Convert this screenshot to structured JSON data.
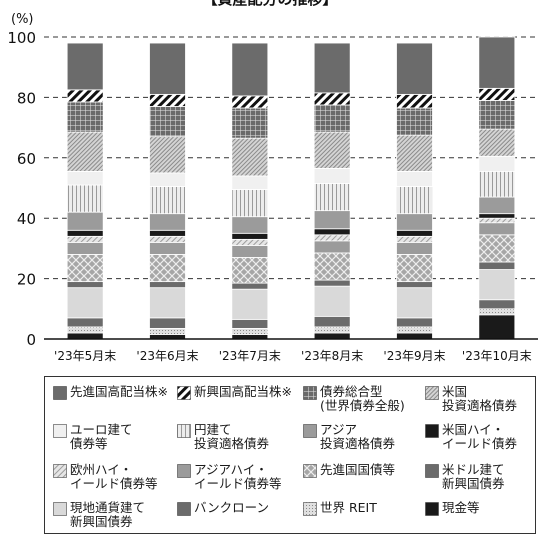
{
  "title": "【資産配分の推移】",
  "chart_data": {
    "type": "bar",
    "stacked": true,
    "unit_label": "(%)",
    "ylim": [
      0,
      100
    ],
    "yticks": [
      0,
      20,
      40,
      60,
      80,
      100
    ],
    "grid": "dashed horizontal",
    "categories": [
      "'23年5月末",
      "'23年6月末",
      "'23年7月末",
      "'23年8月末",
      "'23年9月末",
      "'23年10月末"
    ],
    "series": [
      {
        "name": "現金等",
        "pattern": "solid-black",
        "values": [
          2.0,
          1.5,
          1.5,
          2.0,
          2.0,
          8.0
        ]
      },
      {
        "name": "世界 REIT",
        "pattern": "dotted-grid",
        "values": [
          2.0,
          2.0,
          2.0,
          2.0,
          2.0,
          2.0
        ]
      },
      {
        "name": "バンクローン",
        "pattern": "dark-gray",
        "values": [
          3.0,
          3.5,
          3.0,
          3.5,
          3.0,
          3.0
        ]
      },
      {
        "name": "現地通貨建て\n新興国債券",
        "pattern": "light-gray",
        "values": [
          10.0,
          10.0,
          10.0,
          10.0,
          10.0,
          10.0
        ]
      },
      {
        "name": "米ドル建て\n新興国債券",
        "pattern": "dark-gray",
        "values": [
          2.0,
          2.0,
          2.0,
          2.0,
          2.0,
          2.5
        ]
      },
      {
        "name": "先進国国債等",
        "pattern": "crosshatch",
        "values": [
          9.0,
          9.0,
          8.5,
          9.0,
          9.0,
          9.0
        ]
      },
      {
        "name": "アジアハイ・\nイールド債券等",
        "pattern": "mid-gray",
        "values": [
          4.0,
          4.0,
          4.0,
          4.0,
          4.0,
          4.0
        ]
      },
      {
        "name": "欧州ハイ・\nイールド債券等",
        "pattern": "light-diagonal",
        "values": [
          2.0,
          2.0,
          2.0,
          2.0,
          2.0,
          1.5
        ]
      },
      {
        "name": "米国ハイ・\nイールド債券",
        "pattern": "solid-black",
        "values": [
          2.0,
          2.0,
          2.0,
          2.0,
          2.0,
          1.5
        ]
      },
      {
        "name": "アジア\n投資適格債券",
        "pattern": "mid-gray",
        "values": [
          6.0,
          5.5,
          5.5,
          6.0,
          5.5,
          5.5
        ]
      },
      {
        "name": "円建て\n投資適格債券",
        "pattern": "vertical-lines",
        "values": [
          9.0,
          9.0,
          9.0,
          9.0,
          9.0,
          8.5
        ]
      },
      {
        "name": "ユーロ建て\n債券等",
        "pattern": "very-light-gray",
        "values": [
          4.5,
          4.5,
          4.5,
          5.0,
          5.0,
          5.0
        ]
      },
      {
        "name": "米国\n投資適格債券",
        "pattern": "dense-diagonal",
        "values": [
          13.0,
          12.0,
          12.5,
          12.0,
          12.0,
          9.0
        ]
      },
      {
        "name": "債券総合型\n(世界債券全般)",
        "pattern": "grid",
        "values": [
          10.0,
          10.0,
          10.0,
          9.0,
          9.0,
          9.5
        ]
      },
      {
        "name": "新興国高配当株※",
        "pattern": "bold-diagonal",
        "values": [
          4.0,
          4.0,
          4.0,
          4.0,
          4.5,
          4.0
        ]
      },
      {
        "name": "先進国高配当株※",
        "pattern": "dark-gray",
        "values": [
          15.5,
          17.0,
          17.5,
          16.5,
          17.0,
          17.0
        ]
      }
    ]
  },
  "legend": [
    {
      "label": "先進国高配当株※",
      "pattern": "dark-gray"
    },
    {
      "label": "新興国高配当株※",
      "pattern": "bold-diagonal"
    },
    {
      "label": "債券総合型\n(世界債券全般)",
      "pattern": "grid"
    },
    {
      "label": "米国\n投資適格債券",
      "pattern": "dense-diagonal"
    },
    {
      "label": "ユーロ建て\n債券等",
      "pattern": "very-light-gray"
    },
    {
      "label": "円建て\n投資適格債券",
      "pattern": "vertical-lines"
    },
    {
      "label": "アジア\n投資適格債券",
      "pattern": "mid-gray"
    },
    {
      "label": "米国ハイ・\nイールド債券",
      "pattern": "solid-black"
    },
    {
      "label": "欧州ハイ・\nイールド債券等",
      "pattern": "light-diagonal"
    },
    {
      "label": "アジアハイ・\nイールド債券等",
      "pattern": "mid-gray"
    },
    {
      "label": "先進国国債等",
      "pattern": "crosshatch"
    },
    {
      "label": "米ドル建て\n新興国債券",
      "pattern": "dark-gray"
    },
    {
      "label": "現地通貨建て\n新興国債券",
      "pattern": "light-gray"
    },
    {
      "label": "バンクローン",
      "pattern": "dark-gray"
    },
    {
      "label": "世界 REIT",
      "pattern": "dotted-grid"
    },
    {
      "label": "現金等",
      "pattern": "solid-black"
    }
  ]
}
